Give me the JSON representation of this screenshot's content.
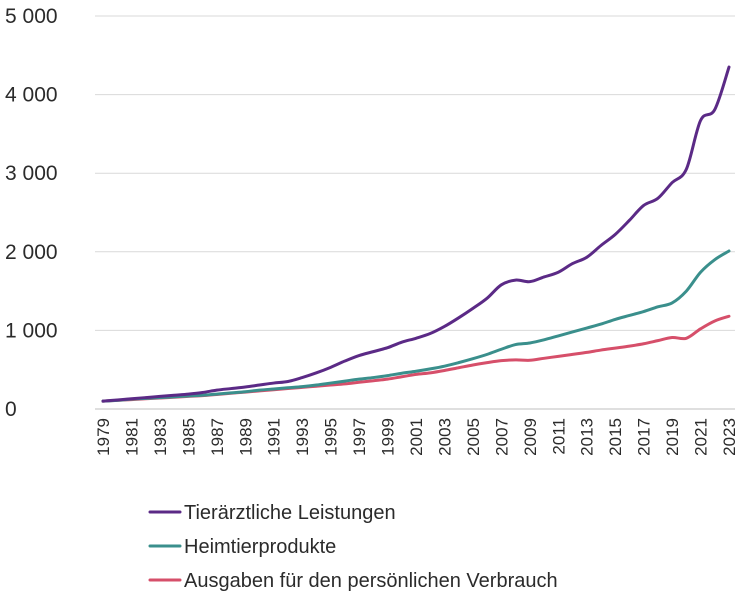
{
  "chart_data": {
    "type": "line",
    "title": "",
    "xlabel": "",
    "ylabel": "",
    "ylim": [
      0,
      5000
    ],
    "y_ticks": [
      0,
      1000,
      2000,
      3000,
      4000,
      5000
    ],
    "y_tick_labels": [
      "0",
      "1 000",
      "2 000",
      "3 000",
      "4 000",
      "5 000"
    ],
    "x_tick_labels": [
      "1979",
      "1981",
      "1983",
      "1985",
      "1987",
      "1989",
      "1991",
      "1993",
      "1995",
      "1997",
      "1999",
      "2001",
      "2003",
      "2005",
      "2007",
      "2009",
      "2011",
      "2013",
      "2015",
      "2017",
      "2019",
      "2021",
      "2023"
    ],
    "grid": "horizontal",
    "legend_position": "bottom",
    "x": [
      1979,
      1980,
      1981,
      1982,
      1983,
      1984,
      1985,
      1986,
      1987,
      1988,
      1989,
      1990,
      1991,
      1992,
      1993,
      1994,
      1995,
      1996,
      1997,
      1998,
      1999,
      2000,
      2001,
      2002,
      2003,
      2004,
      2005,
      2006,
      2007,
      2008,
      2009,
      2010,
      2011,
      2012,
      2013,
      2014,
      2015,
      2016,
      2017,
      2018,
      2019,
      2020,
      2021,
      2022,
      2023
    ],
    "series": [
      {
        "name": "Tierärztliche Leistungen",
        "color": "#5b2a86",
        "values": [
          100,
          115,
          130,
          145,
          160,
          175,
          190,
          210,
          240,
          260,
          280,
          305,
          330,
          350,
          400,
          460,
          530,
          610,
          680,
          730,
          780,
          850,
          900,
          960,
          1050,
          1160,
          1280,
          1410,
          1580,
          1640,
          1620,
          1680,
          1740,
          1850,
          1930,
          2080,
          2220,
          2400,
          2590,
          2680,
          2880,
          3050,
          3670,
          3810,
          4350
        ]
      },
      {
        "name": "Heimtierprodukte",
        "color": "#3a8f8c",
        "values": [
          100,
          110,
          125,
          135,
          145,
          155,
          165,
          175,
          190,
          205,
          220,
          240,
          255,
          270,
          285,
          305,
          330,
          355,
          380,
          400,
          425,
          455,
          480,
          510,
          545,
          590,
          640,
          695,
          760,
          820,
          840,
          880,
          930,
          980,
          1030,
          1080,
          1140,
          1190,
          1240,
          1300,
          1350,
          1500,
          1740,
          1900,
          2010
        ]
      },
      {
        "name": "Ausgaben für den persönlichen Verbrauch",
        "color": "#d64f6a",
        "values": [
          100,
          110,
          120,
          130,
          140,
          150,
          160,
          170,
          185,
          200,
          215,
          230,
          245,
          260,
          275,
          290,
          305,
          320,
          340,
          360,
          380,
          410,
          440,
          460,
          490,
          525,
          560,
          590,
          615,
          625,
          620,
          645,
          670,
          695,
          720,
          750,
          775,
          800,
          830,
          870,
          910,
          900,
          1020,
          1120,
          1180
        ]
      }
    ]
  }
}
